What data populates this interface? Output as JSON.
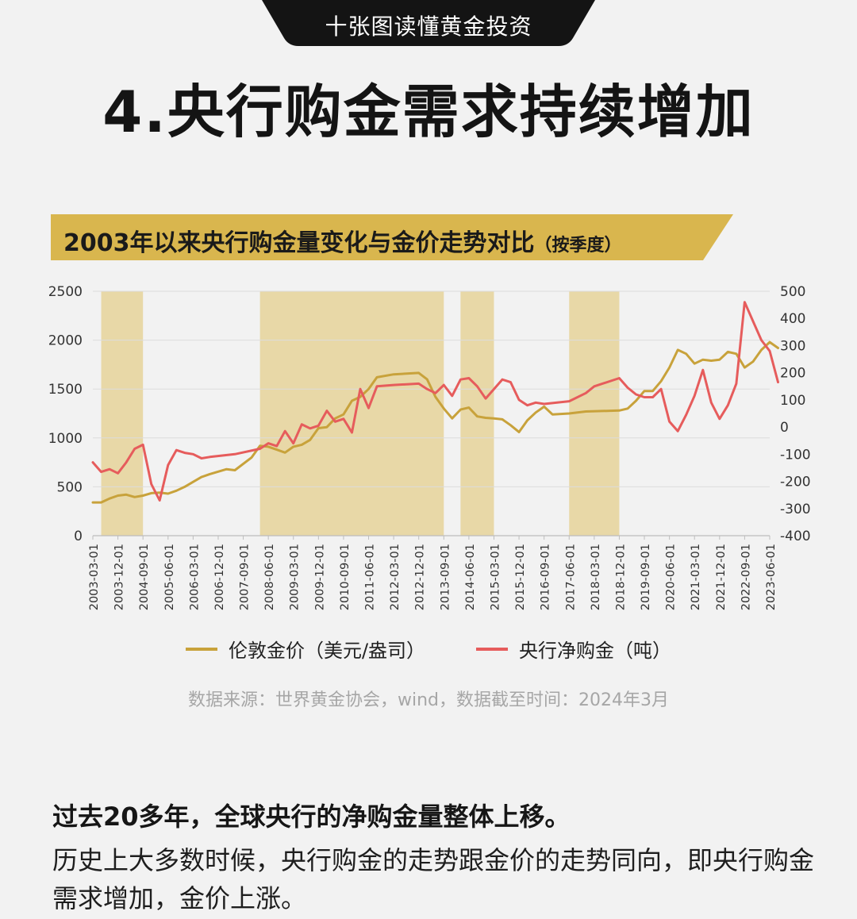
{
  "banner": {
    "label": "十张图读懂黄金投资"
  },
  "header": {
    "title": "4.央行购金需求持续增加"
  },
  "chart_header": {
    "title": "2003年以来央行购金量变化与金价走势对比",
    "subtitle": "（按季度）"
  },
  "colors": {
    "gold_line": "#c8a23b",
    "red_line": "#e65c5c",
    "shade": "#e6d49a",
    "banner_bg": "#141414",
    "title_bar": "#d9b64e"
  },
  "chart_data": {
    "type": "line",
    "title": "2003年以来央行购金量变化与金价走势对比（按季度）",
    "x_tick_labels": [
      "2003-03-01",
      "2003-12-01",
      "2004-09-01",
      "2005-06-01",
      "2006-03-01",
      "2006-12-01",
      "2007-09-01",
      "2008-06-01",
      "2009-03-01",
      "2009-12-01",
      "2010-09-01",
      "2011-06-01",
      "2012-03-01",
      "2012-12-01",
      "2013-09-01",
      "2014-06-01",
      "2015-03-01",
      "2015-12-01",
      "2016-09-01",
      "2017-06-01",
      "2018-03-01",
      "2018-12-01",
      "2019-09-01",
      "2020-06-01",
      "2021-03-01",
      "2021-12-01",
      "2022-09-01",
      "2023-06-01"
    ],
    "y_left": {
      "ylim": [
        0,
        2500
      ],
      "ticks": [
        0,
        500,
        1000,
        1500,
        2000,
        2500
      ]
    },
    "y_right": {
      "ylim": [
        -400,
        500
      ],
      "ticks": [
        -400,
        -300,
        -200,
        -100,
        0,
        100,
        200,
        300,
        400,
        500
      ]
    },
    "shaded_ranges": [
      [
        "2003-06-01",
        "2004-09-01"
      ],
      [
        "2008-03-01",
        "2013-09-01"
      ],
      [
        "2014-03-01",
        "2015-03-01"
      ],
      [
        "2017-06-01",
        "2018-12-01"
      ]
    ],
    "series": [
      {
        "name": "伦敦金价（美元/盎司）",
        "axis": "left",
        "points": [
          [
            "2003-03-01",
            340
          ],
          [
            "2003-06-01",
            340
          ],
          [
            "2003-09-01",
            380
          ],
          [
            "2003-12-01",
            410
          ],
          [
            "2004-03-01",
            420
          ],
          [
            "2004-06-01",
            395
          ],
          [
            "2004-09-01",
            410
          ],
          [
            "2004-12-01",
            435
          ],
          [
            "2005-03-01",
            440
          ],
          [
            "2005-06-01",
            430
          ],
          [
            "2005-09-01",
            460
          ],
          [
            "2005-12-01",
            500
          ],
          [
            "2006-03-01",
            550
          ],
          [
            "2006-06-01",
            600
          ],
          [
            "2006-09-01",
            630
          ],
          [
            "2007-03-01",
            680
          ],
          [
            "2007-06-01",
            670
          ],
          [
            "2007-12-01",
            800
          ],
          [
            "2008-03-01",
            920
          ],
          [
            "2008-06-01",
            910
          ],
          [
            "2008-09-01",
            880
          ],
          [
            "2008-12-01",
            850
          ],
          [
            "2009-03-01",
            910
          ],
          [
            "2009-06-01",
            930
          ],
          [
            "2009-09-01",
            980
          ],
          [
            "2009-12-01",
            1100
          ],
          [
            "2010-03-01",
            1110
          ],
          [
            "2010-06-01",
            1200
          ],
          [
            "2010-09-01",
            1240
          ],
          [
            "2010-12-01",
            1380
          ],
          [
            "2011-03-01",
            1420
          ],
          [
            "2011-06-01",
            1500
          ],
          [
            "2011-09-01",
            1620
          ],
          [
            "2012-03-01",
            1650
          ],
          [
            "2012-12-01",
            1665
          ],
          [
            "2013-03-01",
            1600
          ],
          [
            "2013-06-01",
            1420
          ],
          [
            "2013-09-01",
            1300
          ],
          [
            "2013-12-01",
            1200
          ],
          [
            "2014-03-01",
            1290
          ],
          [
            "2014-06-01",
            1310
          ],
          [
            "2014-09-01",
            1220
          ],
          [
            "2014-12-01",
            1205
          ],
          [
            "2015-03-01",
            1200
          ],
          [
            "2015-06-01",
            1190
          ],
          [
            "2015-09-01",
            1130
          ],
          [
            "2015-12-01",
            1060
          ],
          [
            "2016-03-01",
            1180
          ],
          [
            "2016-06-01",
            1260
          ],
          [
            "2016-09-01",
            1320
          ],
          [
            "2016-12-01",
            1240
          ],
          [
            "2017-06-01",
            1250
          ],
          [
            "2017-12-01",
            1270
          ],
          [
            "2018-12-01",
            1280
          ],
          [
            "2019-03-01",
            1300
          ],
          [
            "2019-06-01",
            1380
          ],
          [
            "2019-09-01",
            1480
          ],
          [
            "2019-12-01",
            1480
          ],
          [
            "2020-03-01",
            1580
          ],
          [
            "2020-06-01",
            1720
          ],
          [
            "2020-09-01",
            1900
          ],
          [
            "2020-12-01",
            1860
          ],
          [
            "2021-03-01",
            1760
          ],
          [
            "2021-06-01",
            1800
          ],
          [
            "2021-09-01",
            1790
          ],
          [
            "2021-12-01",
            1800
          ],
          [
            "2022-03-01",
            1880
          ],
          [
            "2022-06-01",
            1860
          ],
          [
            "2022-09-01",
            1720
          ],
          [
            "2022-12-01",
            1780
          ],
          [
            "2023-03-01",
            1900
          ],
          [
            "2023-06-01",
            1980
          ],
          [
            "2023-09-01",
            1920
          ]
        ]
      },
      {
        "name": "央行净购金（吨）",
        "axis": "right",
        "points": [
          [
            "2003-03-01",
            -130
          ],
          [
            "2003-06-01",
            -165
          ],
          [
            "2003-09-01",
            -155
          ],
          [
            "2003-12-01",
            -170
          ],
          [
            "2004-03-01",
            -130
          ],
          [
            "2004-06-01",
            -80
          ],
          [
            "2004-09-01",
            -65
          ],
          [
            "2004-12-01",
            -210
          ],
          [
            "2005-03-01",
            -270
          ],
          [
            "2005-06-01",
            -140
          ],
          [
            "2005-09-01",
            -85
          ],
          [
            "2005-12-01",
            -95
          ],
          [
            "2006-03-01",
            -100
          ],
          [
            "2006-06-01",
            -115
          ],
          [
            "2006-09-01",
            -110
          ],
          [
            "2007-06-01",
            -100
          ],
          [
            "2008-03-01",
            -80
          ],
          [
            "2008-06-01",
            -60
          ],
          [
            "2008-09-01",
            -70
          ],
          [
            "2008-12-01",
            -15
          ],
          [
            "2009-03-01",
            -60
          ],
          [
            "2009-06-01",
            10
          ],
          [
            "2009-09-01",
            -5
          ],
          [
            "2009-12-01",
            5
          ],
          [
            "2010-03-01",
            60
          ],
          [
            "2010-06-01",
            20
          ],
          [
            "2010-09-01",
            30
          ],
          [
            "2010-12-01",
            -20
          ],
          [
            "2011-03-01",
            140
          ],
          [
            "2011-06-01",
            70
          ],
          [
            "2011-09-01",
            150
          ],
          [
            "2012-03-01",
            155
          ],
          [
            "2012-12-01",
            160
          ],
          [
            "2013-03-01",
            140
          ],
          [
            "2013-06-01",
            125
          ],
          [
            "2013-09-01",
            155
          ],
          [
            "2013-12-01",
            115
          ],
          [
            "2014-03-01",
            175
          ],
          [
            "2014-06-01",
            180
          ],
          [
            "2014-09-01",
            150
          ],
          [
            "2014-12-01",
            105
          ],
          [
            "2015-03-01",
            140
          ],
          [
            "2015-06-01",
            175
          ],
          [
            "2015-09-01",
            165
          ],
          [
            "2015-12-01",
            100
          ],
          [
            "2016-03-01",
            80
          ],
          [
            "2016-06-01",
            90
          ],
          [
            "2016-09-01",
            85
          ],
          [
            "2017-06-01",
            95
          ],
          [
            "2017-12-01",
            125
          ],
          [
            "2018-03-01",
            150
          ],
          [
            "2018-12-01",
            180
          ],
          [
            "2019-03-01",
            145
          ],
          [
            "2019-06-01",
            120
          ],
          [
            "2019-09-01",
            110
          ],
          [
            "2019-12-01",
            110
          ],
          [
            "2020-03-01",
            140
          ],
          [
            "2020-06-01",
            20
          ],
          [
            "2020-09-01",
            -15
          ],
          [
            "2020-12-01",
            45
          ],
          [
            "2021-03-01",
            115
          ],
          [
            "2021-06-01",
            210
          ],
          [
            "2021-09-01",
            90
          ],
          [
            "2021-12-01",
            30
          ],
          [
            "2022-03-01",
            80
          ],
          [
            "2022-06-01",
            160
          ],
          [
            "2022-09-01",
            460
          ],
          [
            "2022-12-01",
            390
          ],
          [
            "2023-03-01",
            320
          ],
          [
            "2023-06-01",
            280
          ],
          [
            "2023-09-01",
            165
          ]
        ]
      }
    ]
  },
  "source_note": "数据来源：世界黄金协会，wind，数据截至时间：2024年3月",
  "paragraph": {
    "heading": "过去20多年，全球央行的净购金量整体上移。",
    "body": "历史上大多数时候，央行购金的走势跟金价的走势同向，即央行购金需求增加，金价上涨。"
  }
}
